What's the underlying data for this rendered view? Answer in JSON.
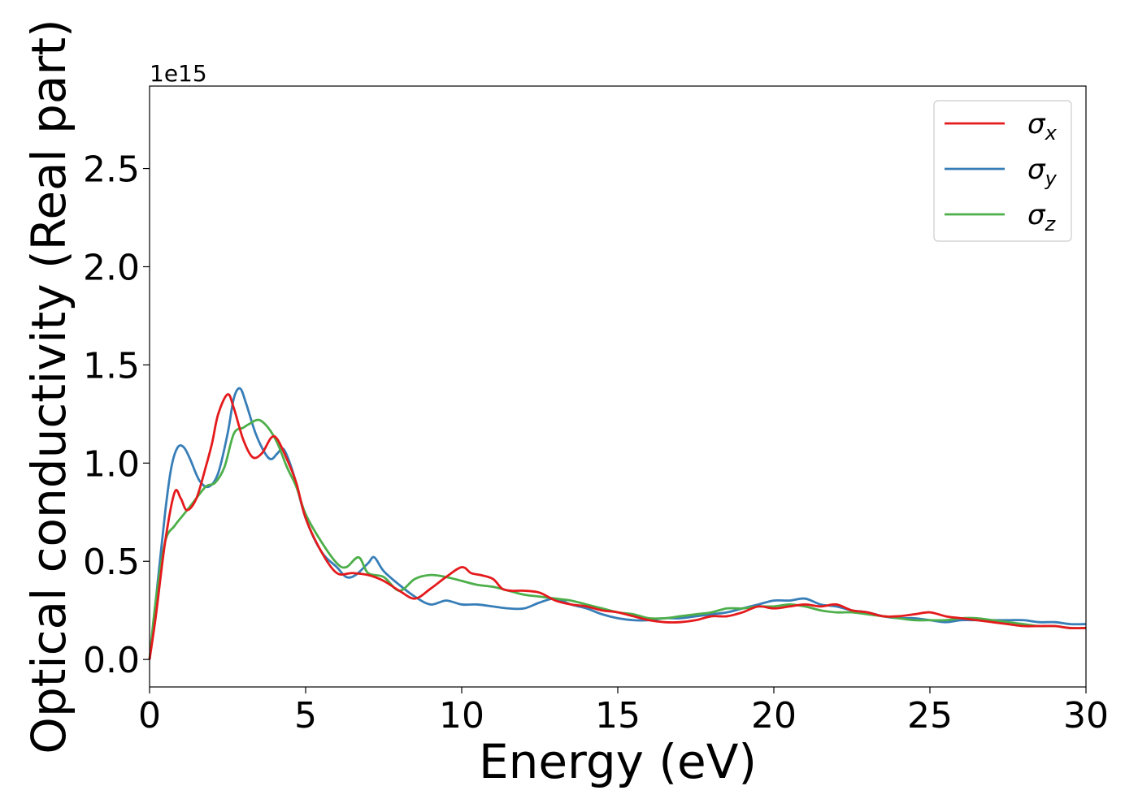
{
  "chart_data": {
    "type": "line",
    "title": "",
    "xlabel": "Energy (eV)",
    "ylabel": "Optical conductivity (Real part)",
    "offset_text": "1e15",
    "xlim": [
      0,
      30
    ],
    "ylim": [
      -0.14,
      2.92
    ],
    "y_scale_factor": 1000000000000000.0,
    "xticks": [
      0,
      5,
      10,
      15,
      20,
      25,
      30
    ],
    "xtick_labels": [
      "0",
      "5",
      "10",
      "15",
      "20",
      "25",
      "30"
    ],
    "yticks": [
      0.0,
      0.5,
      1.0,
      1.5,
      2.0,
      2.5
    ],
    "ytick_labels": [
      "0.0",
      "0.5",
      "1.0",
      "1.5",
      "2.0",
      "2.5"
    ],
    "grid": false,
    "legend_position": "top-right",
    "series": [
      {
        "name": "σx",
        "symbol": "σ",
        "subscript": "x",
        "color": "#e41a1c",
        "x": [
          0,
          0.2,
          0.5,
          0.8,
          1.0,
          1.2,
          1.5,
          1.8,
          2.0,
          2.2,
          2.5,
          2.7,
          3.0,
          3.3,
          3.6,
          3.9,
          4.1,
          4.4,
          4.7,
          5.0,
          5.5,
          6.0,
          6.5,
          7.0,
          7.5,
          8.0,
          8.5,
          9.0,
          9.5,
          10.0,
          10.3,
          10.6,
          11.0,
          11.3,
          11.6,
          12.0,
          12.5,
          13.0,
          13.5,
          14.0,
          14.5,
          15.0,
          15.5,
          16.0,
          16.5,
          17.0,
          17.5,
          18.0,
          18.5,
          19.0,
          19.5,
          20.0,
          20.5,
          21.0,
          21.5,
          22.0,
          22.5,
          23.0,
          23.5,
          24.0,
          24.5,
          25.0,
          25.5,
          26.0,
          26.5,
          27.0,
          27.5,
          28.0,
          28.5,
          29.0,
          29.5,
          30.0
        ],
        "y": [
          0.0,
          0.22,
          0.6,
          0.85,
          0.82,
          0.76,
          0.82,
          0.98,
          1.1,
          1.25,
          1.35,
          1.28,
          1.12,
          1.03,
          1.05,
          1.13,
          1.12,
          1.02,
          0.9,
          0.72,
          0.55,
          0.44,
          0.44,
          0.43,
          0.4,
          0.35,
          0.31,
          0.36,
          0.42,
          0.47,
          0.44,
          0.43,
          0.41,
          0.36,
          0.35,
          0.35,
          0.34,
          0.3,
          0.28,
          0.27,
          0.25,
          0.24,
          0.22,
          0.2,
          0.19,
          0.19,
          0.2,
          0.22,
          0.22,
          0.24,
          0.27,
          0.26,
          0.27,
          0.28,
          0.27,
          0.28,
          0.25,
          0.24,
          0.22,
          0.22,
          0.23,
          0.24,
          0.22,
          0.21,
          0.2,
          0.19,
          0.18,
          0.17,
          0.17,
          0.17,
          0.16,
          0.16
        ]
      },
      {
        "name": "σy",
        "symbol": "σ",
        "subscript": "y",
        "color": "#377eb8",
        "x": [
          0,
          0.2,
          0.5,
          0.7,
          0.9,
          1.1,
          1.3,
          1.6,
          1.9,
          2.2,
          2.5,
          2.7,
          2.9,
          3.1,
          3.4,
          3.7,
          3.9,
          4.1,
          4.3,
          4.6,
          5.0,
          5.5,
          6.0,
          6.3,
          6.6,
          7.0,
          7.2,
          7.5,
          8.0,
          8.5,
          9.0,
          9.5,
          10.0,
          10.5,
          11.0,
          11.5,
          12.0,
          12.5,
          13.0,
          13.5,
          14.0,
          14.5,
          15.0,
          15.5,
          16.0,
          16.5,
          17.0,
          17.5,
          18.0,
          18.5,
          19.0,
          19.5,
          20.0,
          20.5,
          21.0,
          21.5,
          22.0,
          22.5,
          23.0,
          23.5,
          24.0,
          24.5,
          25.0,
          25.5,
          26.0,
          26.5,
          27.0,
          27.5,
          28.0,
          28.5,
          29.0,
          29.5,
          30.0
        ],
        "y": [
          0.0,
          0.3,
          0.75,
          0.98,
          1.08,
          1.08,
          1.02,
          0.91,
          0.88,
          0.95,
          1.15,
          1.33,
          1.38,
          1.3,
          1.15,
          1.05,
          1.02,
          1.05,
          1.07,
          0.95,
          0.72,
          0.55,
          0.47,
          0.42,
          0.43,
          0.49,
          0.52,
          0.45,
          0.38,
          0.32,
          0.28,
          0.3,
          0.28,
          0.28,
          0.27,
          0.26,
          0.26,
          0.29,
          0.31,
          0.28,
          0.26,
          0.23,
          0.21,
          0.2,
          0.2,
          0.21,
          0.21,
          0.22,
          0.23,
          0.24,
          0.26,
          0.28,
          0.3,
          0.3,
          0.31,
          0.28,
          0.27,
          0.25,
          0.24,
          0.22,
          0.21,
          0.21,
          0.2,
          0.19,
          0.2,
          0.2,
          0.2,
          0.2,
          0.2,
          0.19,
          0.19,
          0.18,
          0.18
        ]
      },
      {
        "name": "σz",
        "symbol": "σ",
        "subscript": "z",
        "color": "#4daf4a",
        "x": [
          0,
          0.2,
          0.5,
          0.8,
          1.1,
          1.4,
          1.8,
          2.1,
          2.4,
          2.7,
          3.0,
          3.2,
          3.5,
          3.8,
          4.1,
          4.4,
          4.7,
          5.0,
          5.5,
          6.0,
          6.3,
          6.7,
          7.0,
          7.5,
          8.0,
          8.5,
          9.0,
          9.5,
          10.0,
          10.5,
          11.0,
          11.5,
          12.0,
          12.5,
          13.0,
          13.5,
          14.0,
          14.5,
          15.0,
          15.5,
          16.0,
          16.5,
          17.0,
          17.5,
          18.0,
          18.5,
          19.0,
          19.5,
          20.0,
          20.5,
          21.0,
          21.5,
          22.0,
          22.5,
          23.0,
          23.5,
          24.0,
          24.5,
          25.0,
          25.5,
          26.0,
          26.5,
          27.0,
          27.5,
          28.0,
          28.5,
          29.0,
          29.5,
          30.0
        ],
        "y": [
          0.0,
          0.3,
          0.6,
          0.68,
          0.74,
          0.8,
          0.88,
          0.9,
          0.98,
          1.15,
          1.18,
          1.2,
          1.22,
          1.18,
          1.1,
          0.98,
          0.88,
          0.74,
          0.6,
          0.49,
          0.47,
          0.52,
          0.44,
          0.42,
          0.35,
          0.41,
          0.43,
          0.42,
          0.4,
          0.38,
          0.37,
          0.35,
          0.33,
          0.32,
          0.31,
          0.3,
          0.28,
          0.26,
          0.24,
          0.23,
          0.21,
          0.21,
          0.22,
          0.23,
          0.24,
          0.26,
          0.26,
          0.27,
          0.27,
          0.28,
          0.27,
          0.25,
          0.24,
          0.24,
          0.23,
          0.22,
          0.21,
          0.2,
          0.2,
          0.2,
          0.21,
          0.21,
          0.2,
          0.19,
          0.18,
          0.17,
          0.17,
          0.16,
          0.16
        ]
      }
    ]
  }
}
